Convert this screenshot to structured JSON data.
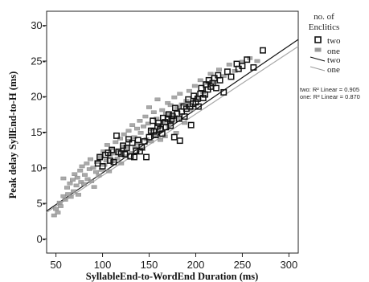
{
  "chart_data": {
    "type": "scatter",
    "title": "",
    "xlabel": "SyllableEnd-to-WordEnd Duration (ms)",
    "ylabel": "Peak delay SyllEnd-to-H (ms)",
    "xlim": [
      40,
      310
    ],
    "ylim": [
      -2,
      32
    ],
    "xticks": [
      50,
      100,
      150,
      200,
      250,
      300
    ],
    "yticks": [
      0,
      5,
      10,
      15,
      20,
      25,
      30
    ],
    "tick_format": "dash",
    "grid": false,
    "legend": {
      "title_line1": "no. of",
      "title_line2": "Enclitics",
      "position": "right",
      "entries": [
        {
          "label": "two",
          "kind": "marker",
          "series": "two"
        },
        {
          "label": "one",
          "kind": "marker",
          "series": "one"
        },
        {
          "label": "two",
          "kind": "line",
          "series": "two"
        },
        {
          "label": "one",
          "kind": "line",
          "series": "one"
        }
      ]
    },
    "annotations": [
      "two: R² Linear = 0.905",
      "one: R² Linear = 0.870"
    ],
    "series": [
      {
        "name": "two",
        "marker": "open-square",
        "color": "#111111",
        "fit": {
          "slope": 0.0893,
          "intercept": 0.35
        },
        "points": [
          [
            95,
            10.6
          ],
          [
            97,
            11.5
          ],
          [
            100,
            10.2
          ],
          [
            103,
            11.8
          ],
          [
            106,
            12.1
          ],
          [
            108,
            11.0
          ],
          [
            110,
            12.5
          ],
          [
            112,
            10.8
          ],
          [
            115,
            14.5
          ],
          [
            117,
            12.2
          ],
          [
            120,
            12.0
          ],
          [
            122,
            13.1
          ],
          [
            124,
            11.9
          ],
          [
            126,
            12.8
          ],
          [
            128,
            14.0
          ],
          [
            130,
            11.6
          ],
          [
            132,
            13.5
          ],
          [
            134,
            11.5
          ],
          [
            136,
            12.4
          ],
          [
            138,
            13.9
          ],
          [
            140,
            12.3
          ],
          [
            142,
            12.9
          ],
          [
            145,
            13.7
          ],
          [
            147,
            11.5
          ],
          [
            150,
            14.3
          ],
          [
            152,
            15.2
          ],
          [
            154,
            16.6
          ],
          [
            155,
            15.1
          ],
          [
            157,
            14.6
          ],
          [
            159,
            15.8
          ],
          [
            160,
            16.3
          ],
          [
            162,
            15.4
          ],
          [
            164,
            14.8
          ],
          [
            165,
            17.0
          ],
          [
            167,
            16.4
          ],
          [
            168,
            15.7
          ],
          [
            170,
            16.9
          ],
          [
            171,
            17.5
          ],
          [
            173,
            15.9
          ],
          [
            174,
            16.8
          ],
          [
            175,
            17.3
          ],
          [
            177,
            14.3
          ],
          [
            178,
            18.4
          ],
          [
            180,
            17.6
          ],
          [
            182,
            16.9
          ],
          [
            183,
            13.8
          ],
          [
            185,
            17.9
          ],
          [
            187,
            18.6
          ],
          [
            188,
            17.2
          ],
          [
            190,
            18.3
          ],
          [
            192,
            19.6
          ],
          [
            194,
            18.6
          ],
          [
            195,
            16.0
          ],
          [
            197,
            19.0
          ],
          [
            198,
            20.1
          ],
          [
            200,
            19.2
          ],
          [
            202,
            19.7
          ],
          [
            203,
            18.6
          ],
          [
            205,
            20.4
          ],
          [
            206,
            21.2
          ],
          [
            208,
            19.8
          ],
          [
            210,
            20.3
          ],
          [
            211,
            21.7
          ],
          [
            213,
            21.0
          ],
          [
            214,
            22.3
          ],
          [
            216,
            21.4
          ],
          [
            218,
            21.9
          ],
          [
            220,
            22.6
          ],
          [
            222,
            21.2
          ],
          [
            224,
            23.0
          ],
          [
            226,
            22.3
          ],
          [
            230,
            20.6
          ],
          [
            234,
            23.5
          ],
          [
            238,
            22.8
          ],
          [
            244,
            24.6
          ],
          [
            246,
            23.9
          ],
          [
            250,
            24.3
          ],
          [
            255,
            25.2
          ],
          [
            262,
            24.1
          ],
          [
            272,
            26.5
          ]
        ]
      },
      {
        "name": "one",
        "marker": "filled-rect",
        "color": "#9a9a9a",
        "fit": {
          "slope": 0.0865,
          "intercept": 0.25
        },
        "points": [
          [
            48,
            3.3
          ],
          [
            50,
            4.2
          ],
          [
            52,
            3.7
          ],
          [
            54,
            5.1
          ],
          [
            55,
            4.6
          ],
          [
            58,
            6.0
          ],
          [
            58,
            8.5
          ],
          [
            60,
            5.5
          ],
          [
            62,
            7.2
          ],
          [
            63,
            6.3
          ],
          [
            65,
            7.8
          ],
          [
            66,
            5.9
          ],
          [
            68,
            8.3
          ],
          [
            69,
            6.7
          ],
          [
            70,
            9.1
          ],
          [
            72,
            7.5
          ],
          [
            73,
            8.6
          ],
          [
            74,
            6.2
          ],
          [
            76,
            9.6
          ],
          [
            77,
            8.0
          ],
          [
            78,
            10.2
          ],
          [
            80,
            7.7
          ],
          [
            81,
            9.0
          ],
          [
            83,
            10.6
          ],
          [
            84,
            8.4
          ],
          [
            86,
            9.8
          ],
          [
            87,
            11.2
          ],
          [
            88,
            8.1
          ],
          [
            90,
            10.0
          ],
          [
            91,
            7.3
          ],
          [
            93,
            9.4
          ],
          [
            94,
            10.8
          ],
          [
            96,
            8.9
          ],
          [
            98,
            11.5
          ],
          [
            99,
            9.7
          ],
          [
            101,
            12.3
          ],
          [
            102,
            10.4
          ],
          [
            104,
            11.0
          ],
          [
            105,
            13.2
          ],
          [
            107,
            9.5
          ],
          [
            108,
            11.8
          ],
          [
            110,
            12.7
          ],
          [
            111,
            10.9
          ],
          [
            113,
            12.0
          ],
          [
            114,
            13.6
          ],
          [
            116,
            11.3
          ],
          [
            117,
            12.5
          ],
          [
            119,
            14.1
          ],
          [
            120,
            10.6
          ],
          [
            122,
            13.0
          ],
          [
            123,
            14.7
          ],
          [
            125,
            11.6
          ],
          [
            126,
            12.9
          ],
          [
            128,
            15.2
          ],
          [
            129,
            13.8
          ],
          [
            131,
            12.1
          ],
          [
            132,
            16.0
          ],
          [
            134,
            14.3
          ],
          [
            135,
            12.8
          ],
          [
            137,
            15.5
          ],
          [
            138,
            13.4
          ],
          [
            140,
            16.6
          ],
          [
            141,
            14.9
          ],
          [
            143,
            12.6
          ],
          [
            144,
            15.8
          ],
          [
            146,
            17.2
          ],
          [
            147,
            14.0
          ],
          [
            149,
            16.2
          ],
          [
            150,
            18.5
          ],
          [
            152,
            13.7
          ],
          [
            153,
            15.4
          ],
          [
            155,
            17.8
          ],
          [
            156,
            14.6
          ],
          [
            158,
            16.9
          ],
          [
            159,
            19.6
          ],
          [
            161,
            15.7
          ],
          [
            162,
            13.9
          ],
          [
            164,
            18.1
          ],
          [
            165,
            16.4
          ],
          [
            167,
            14.4
          ],
          [
            168,
            17.6
          ],
          [
            170,
            19.1
          ],
          [
            171,
            15.9
          ],
          [
            173,
            18.8
          ],
          [
            174,
            16.7
          ],
          [
            176,
            17.3
          ],
          [
            177,
            19.9
          ],
          [
            179,
            14.9
          ],
          [
            180,
            18.4
          ],
          [
            182,
            17.0
          ],
          [
            183,
            20.4
          ],
          [
            185,
            18.9
          ],
          [
            188,
            16.3
          ],
          [
            190,
            19.4
          ],
          [
            193,
            20.8
          ],
          [
            196,
            18.2
          ],
          [
            199,
            21.5
          ],
          [
            202,
            19.8
          ],
          [
            205,
            22.3
          ],
          [
            208,
            20.6
          ],
          [
            212,
            21.9
          ],
          [
            216,
            23.2
          ],
          [
            220,
            22.0
          ],
          [
            225,
            23.8
          ],
          [
            230,
            22.9
          ],
          [
            236,
            24.5
          ],
          [
            242,
            23.6
          ],
          [
            250,
            24.9
          ],
          [
            258,
            25.4
          ],
          [
            266,
            25.0
          ]
        ]
      }
    ]
  }
}
